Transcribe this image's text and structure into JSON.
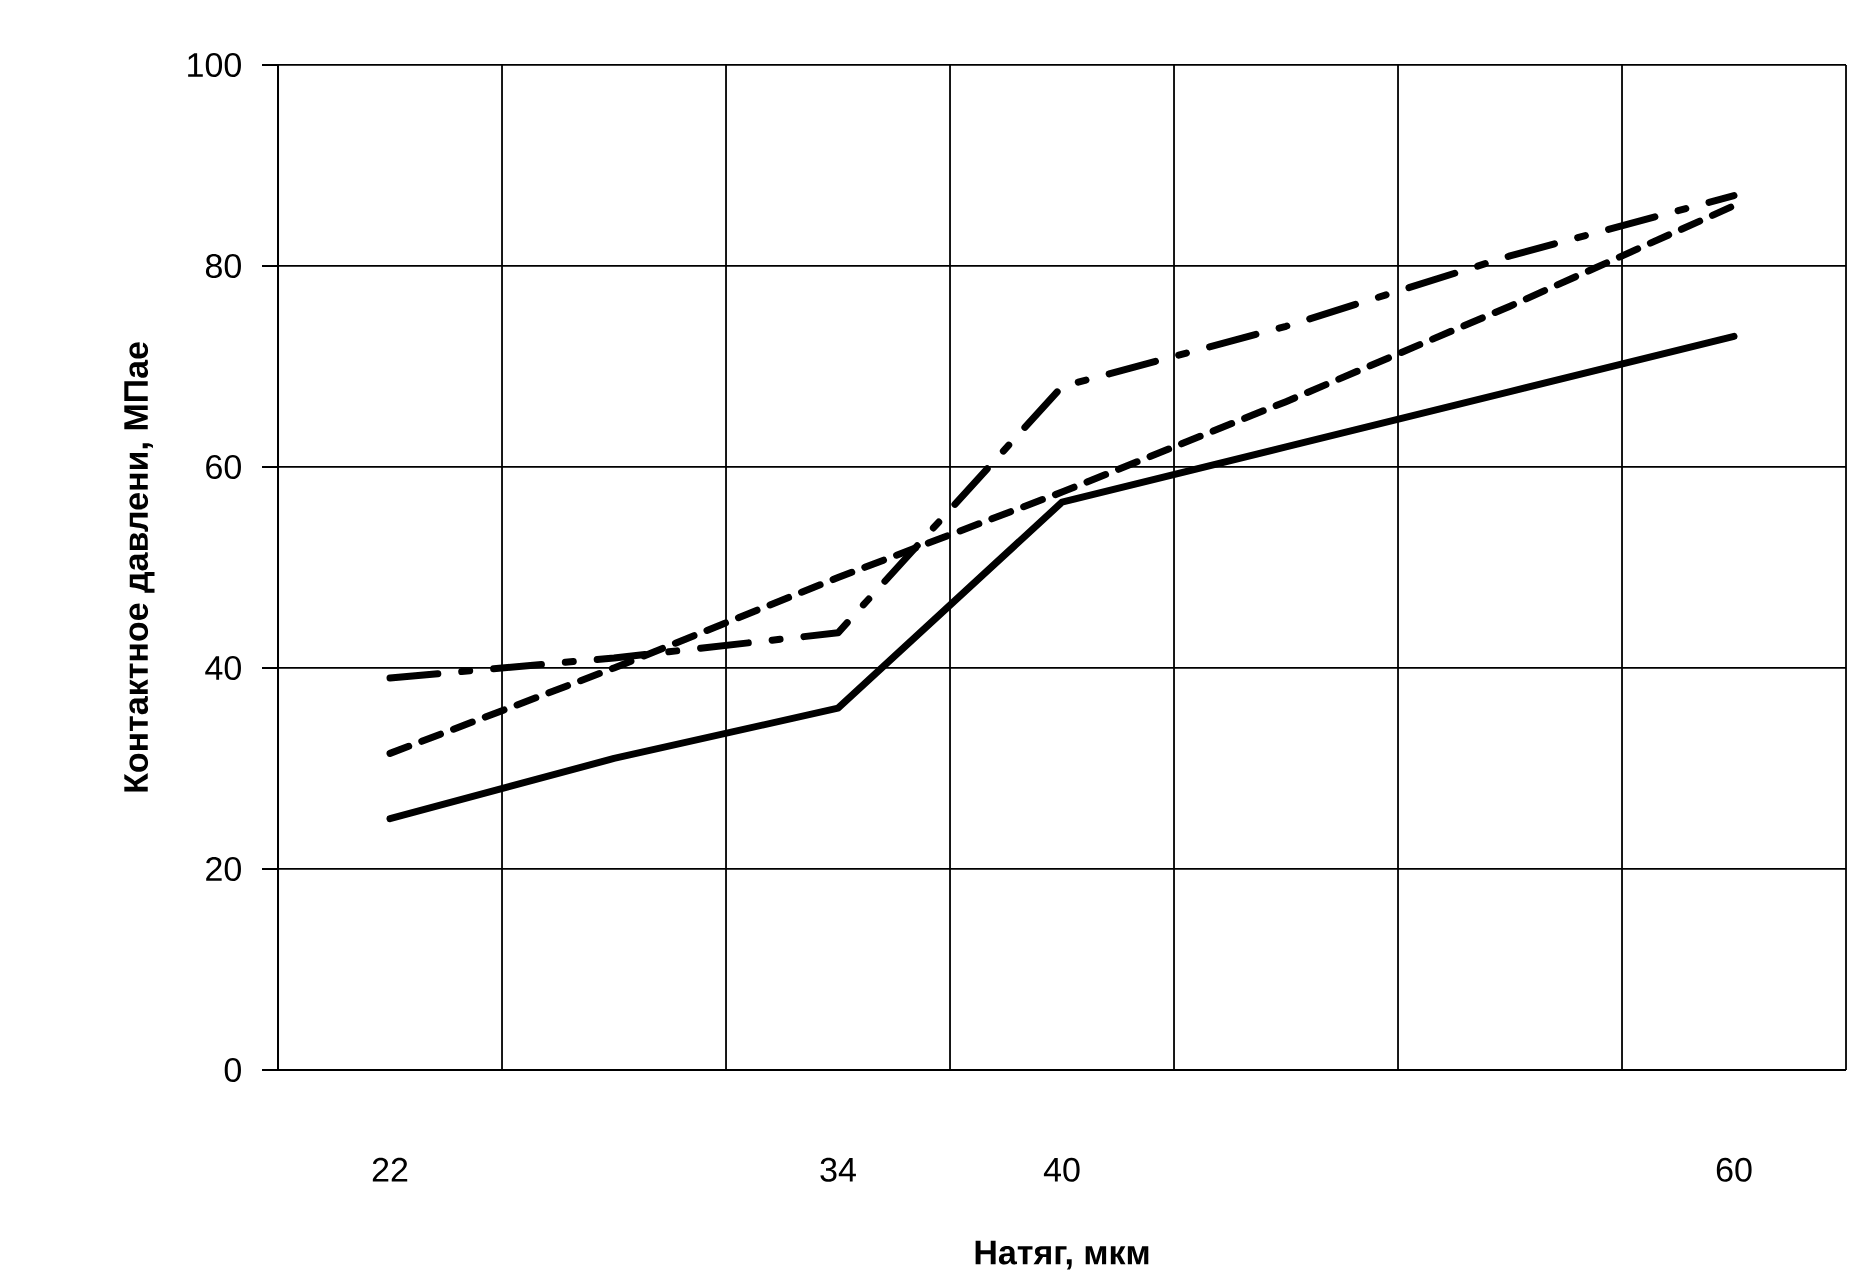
{
  "chart_data": {
    "type": "line",
    "xlabel": "Натяг, мкм",
    "ylabel": "Контактное давлени, МПае",
    "categories": [
      "22",
      null,
      "34",
      "40",
      null,
      null,
      "60"
    ],
    "series": [
      {
        "color": "#000000",
        "line_style": "solid",
        "values": [
          25,
          31,
          36,
          56.5,
          62,
          67.5,
          73
        ]
      },
      {
        "color": "#000000",
        "line_style": "dashed",
        "values": [
          31.5,
          40,
          49,
          57.5,
          66.5,
          76,
          86
        ]
      },
      {
        "color": "#000000",
        "line_style": "dashdot",
        "values": [
          39,
          41,
          43.5,
          68,
          74,
          81,
          87
        ]
      }
    ],
    "ylim": [
      0,
      100
    ],
    "yticks": [
      0,
      20,
      40,
      60,
      80,
      100
    ],
    "grid": true,
    "marker": "none"
  }
}
